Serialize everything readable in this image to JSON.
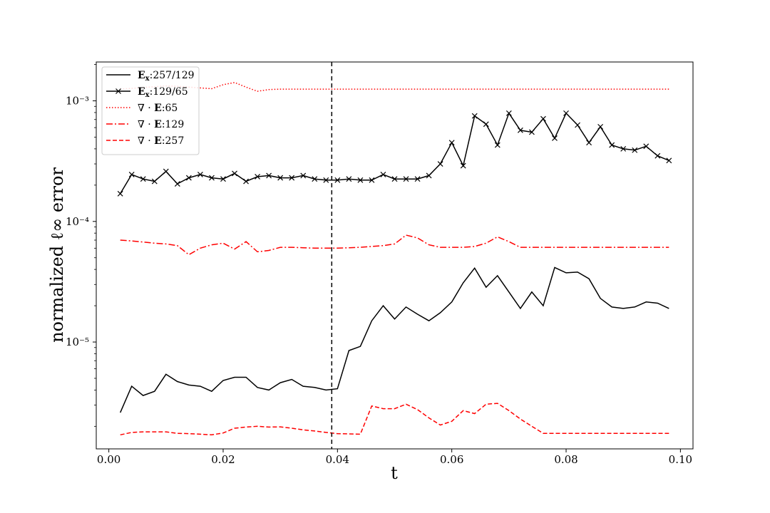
{
  "chart_data": {
    "type": "line",
    "title": "",
    "xlabel": "t",
    "ylabel": "normalized ℓ∞ error",
    "yscale": "log",
    "xlim": [
      -0.0022,
      0.1022
    ],
    "ylim": [
      1.3e-06,
      0.0021
    ],
    "xticks": [
      0.0,
      0.02,
      0.04,
      0.06,
      0.08,
      0.1
    ],
    "xtick_labels": [
      "0.00",
      "0.02",
      "0.04",
      "0.06",
      "0.08",
      "0.10"
    ],
    "yticks": [
      1e-05,
      0.0001,
      0.001
    ],
    "ytick_labels": [
      "10⁻⁵",
      "10⁻⁴",
      "10⁻³"
    ],
    "vline": {
      "x": 0.039,
      "style": "dashed",
      "color": "#000000"
    },
    "legend_position": "top-left",
    "x": [
      0.002,
      0.004,
      0.006,
      0.008,
      0.01,
      0.012,
      0.014,
      0.016,
      0.018,
      0.02,
      0.022,
      0.024,
      0.026,
      0.028,
      0.03,
      0.032,
      0.034,
      0.036,
      0.038,
      0.04,
      0.042,
      0.044,
      0.046,
      0.048,
      0.05,
      0.052,
      0.054,
      0.056,
      0.058,
      0.06,
      0.062,
      0.064,
      0.066,
      0.068,
      0.07,
      0.072,
      0.074,
      0.076,
      0.078,
      0.08,
      0.082,
      0.084,
      0.086,
      0.088,
      0.09,
      0.092,
      0.094,
      0.096,
      0.098
    ],
    "series": [
      {
        "name_bold": "E",
        "name_sub": "x",
        "name_rest": ":257/129",
        "color": "#000000",
        "style": "solid",
        "marker": "none",
        "values": [
          2.6e-06,
          4.3e-06,
          3.6e-06,
          3.9e-06,
          5.4e-06,
          4.7e-06,
          4.4e-06,
          4.3e-06,
          3.9e-06,
          4.8e-06,
          5.1e-06,
          5.1e-06,
          4.2e-06,
          4e-06,
          4.6e-06,
          4.9e-06,
          4.3e-06,
          4.2e-06,
          4e-06,
          4.1e-06,
          8.5e-06,
          9.2e-06,
          1.5e-05,
          2e-05,
          1.55e-05,
          1.95e-05,
          1.7e-05,
          1.5e-05,
          1.75e-05,
          2.15e-05,
          3.1e-05,
          4.1e-05,
          2.85e-05,
          3.55e-05,
          2.6e-05,
          1.9e-05,
          2.6e-05,
          2e-05,
          4.15e-05,
          3.75e-05,
          3.8e-05,
          3.35e-05,
          2.3e-05,
          1.95e-05,
          1.9e-05,
          1.95e-05,
          2.15e-05,
          2.1e-05,
          1.9e-05
        ]
      },
      {
        "name_bold": "E",
        "name_sub": "x",
        "name_rest": ":129/65",
        "color": "#000000",
        "style": "solid",
        "marker": "x",
        "values": [
          0.00017,
          0.000245,
          0.000225,
          0.000215,
          0.00026,
          0.000205,
          0.00023,
          0.000245,
          0.00023,
          0.000225,
          0.00025,
          0.000215,
          0.000235,
          0.00024,
          0.00023,
          0.00023,
          0.00024,
          0.000225,
          0.00022,
          0.00022,
          0.000225,
          0.00022,
          0.00022,
          0.000245,
          0.000225,
          0.000225,
          0.000225,
          0.00024,
          0.0003,
          0.00045,
          0.00029,
          0.00075,
          0.00064,
          0.00043,
          0.00079,
          0.00057,
          0.00055,
          0.00071,
          0.00049,
          0.00079,
          0.00063,
          0.00045,
          0.00061,
          0.00043,
          0.0004,
          0.00039,
          0.00042,
          0.00035,
          0.00032
        ]
      },
      {
        "name_bold": "E",
        "name_prefix": "∇ · ",
        "name_rest": ":65",
        "color": "#ff0000",
        "style": "dotted",
        "marker": "none",
        "values": [
          0.00125,
          0.00127,
          0.00129,
          0.00131,
          0.00133,
          0.00132,
          0.0013,
          0.00128,
          0.00126,
          0.00136,
          0.00142,
          0.0013,
          0.0012,
          0.00124,
          0.00125,
          0.00125,
          0.00125,
          0.00125,
          0.00125,
          0.00125,
          0.00125,
          0.00125,
          0.00125,
          0.00125,
          0.00125,
          0.00125,
          0.00125,
          0.00125,
          0.00125,
          0.00125,
          0.00125,
          0.00125,
          0.00125,
          0.00125,
          0.00125,
          0.00125,
          0.00125,
          0.00125,
          0.00125,
          0.00125,
          0.00125,
          0.00125,
          0.00125,
          0.00125,
          0.00125,
          0.00125,
          0.00125,
          0.00125,
          0.00125
        ]
      },
      {
        "name_bold": "E",
        "name_prefix": "∇ · ",
        "name_rest": ":129",
        "color": "#ff0000",
        "style": "dashdot",
        "marker": "none",
        "values": [
          7e-05,
          6.9e-05,
          6.75e-05,
          6.6e-05,
          6.5e-05,
          6.3e-05,
          5.3e-05,
          6e-05,
          6.4e-05,
          6.6e-05,
          5.9e-05,
          6.8e-05,
          5.6e-05,
          5.75e-05,
          6.1e-05,
          6.1e-05,
          6.05e-05,
          6e-05,
          6e-05,
          6e-05,
          6.05e-05,
          6.1e-05,
          6.2e-05,
          6.3e-05,
          6.5e-05,
          7.7e-05,
          7.3e-05,
          6.4e-05,
          6.1e-05,
          6.1e-05,
          6.1e-05,
          6.2e-05,
          6.6e-05,
          7.45e-05,
          6.8e-05,
          6.1e-05,
          6.1e-05,
          6.1e-05,
          6.1e-05,
          6.1e-05,
          6.1e-05,
          6.1e-05,
          6.1e-05,
          6.1e-05,
          6.1e-05,
          6.1e-05,
          6.1e-05,
          6.1e-05,
          6.1e-05
        ]
      },
      {
        "name_bold": "E",
        "name_prefix": "∇ · ",
        "name_rest": ":257",
        "color": "#ff0000",
        "style": "dashed",
        "marker": "none",
        "values": [
          1.7e-06,
          1.78e-06,
          1.8e-06,
          1.8e-06,
          1.8e-06,
          1.75e-06,
          1.74e-06,
          1.72e-06,
          1.7e-06,
          1.76e-06,
          1.93e-06,
          1.97e-06,
          2e-06,
          1.97e-06,
          1.98e-06,
          1.93e-06,
          1.87e-06,
          1.83e-06,
          1.78e-06,
          1.74e-06,
          1.73e-06,
          1.72e-06,
          2.95e-06,
          2.8e-06,
          2.8e-06,
          3.05e-06,
          2.75e-06,
          2.35e-06,
          2.05e-06,
          2.2e-06,
          2.7e-06,
          2.55e-06,
          3.05e-06,
          3.1e-06,
          2.7e-06,
          2.3e-06,
          2e-06,
          1.75e-06,
          1.75e-06,
          1.75e-06,
          1.75e-06,
          1.75e-06,
          1.75e-06,
          1.75e-06,
          1.75e-06,
          1.75e-06,
          1.75e-06,
          1.75e-06,
          1.75e-06
        ]
      }
    ]
  }
}
